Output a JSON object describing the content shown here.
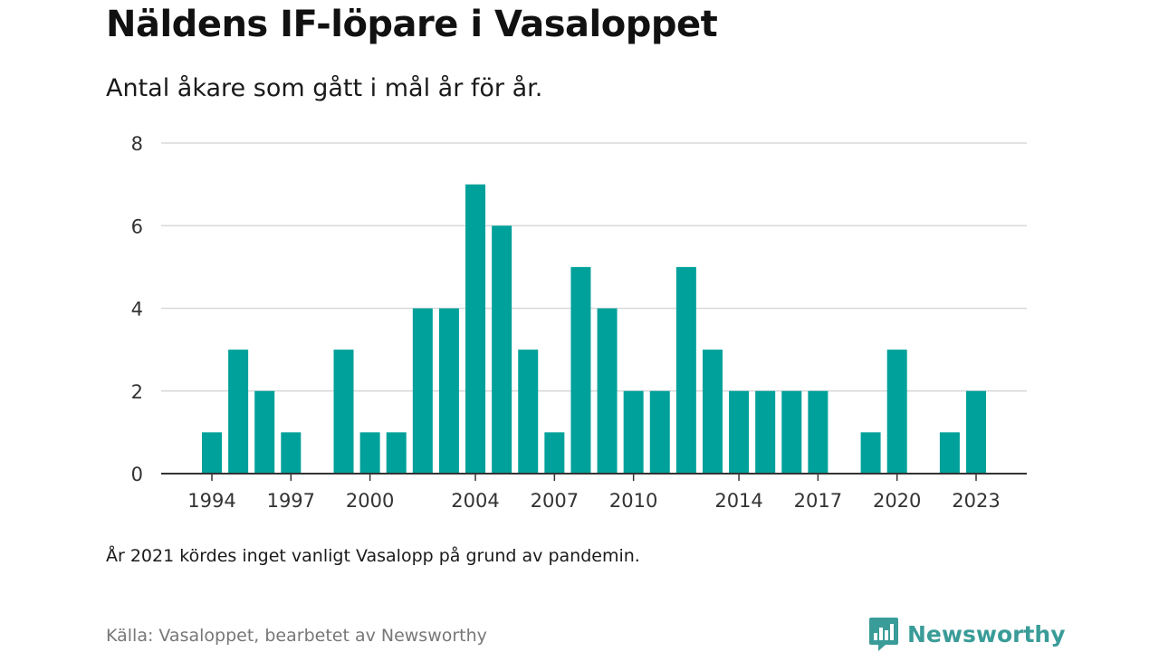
{
  "title": "Näldens IF-löpare i Vasaloppet",
  "subtitle": "Antal åkare som gått i mål år för år.",
  "note": "År 2021 kördes inget vanligt Vasalopp på grund av pandemin.",
  "source": "Källa: Vasaloppet, bearbetet av Newsworthy",
  "brand": {
    "name": "Newsworthy",
    "color": "#3a9c98",
    "icon": "newsworthy-logo-icon"
  },
  "chart_data": {
    "type": "bar",
    "title": "Näldens IF-löpare i Vasaloppet",
    "subtitle": "Antal åkare som gått i mål år för år.",
    "xlabel": "",
    "ylabel": "",
    "x": [
      1994,
      1995,
      1996,
      1997,
      1998,
      1999,
      2000,
      2001,
      2002,
      2003,
      2004,
      2005,
      2006,
      2007,
      2008,
      2009,
      2010,
      2011,
      2012,
      2013,
      2014,
      2015,
      2016,
      2017,
      2018,
      2019,
      2020,
      2021,
      2022,
      2023
    ],
    "values": [
      1,
      3,
      2,
      1,
      0,
      3,
      1,
      1,
      4,
      4,
      7,
      6,
      3,
      1,
      5,
      4,
      2,
      2,
      5,
      3,
      2,
      2,
      2,
      2,
      0,
      1,
      3,
      0,
      1,
      2
    ],
    "ylim": [
      0,
      8
    ],
    "yticks": [
      0,
      2,
      4,
      6,
      8
    ],
    "xticks": [
      1994,
      1997,
      2000,
      2004,
      2007,
      2010,
      2014,
      2017,
      2020,
      2023
    ],
    "grid": true,
    "legend": "none",
    "bar_color": "#00a19a"
  }
}
